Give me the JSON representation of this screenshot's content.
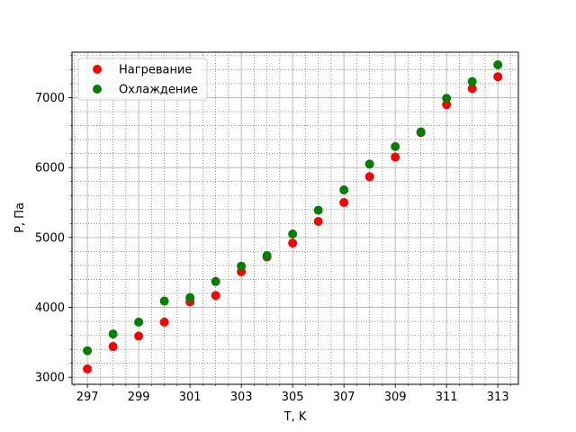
{
  "chart_data": {
    "type": "scatter",
    "title": "",
    "xlabel": "T, K",
    "ylabel": "P, Па",
    "xlim": [
      296.4,
      313.8
    ],
    "ylim": [
      2900,
      7650
    ],
    "x_ticks": [
      297,
      299,
      301,
      303,
      305,
      307,
      309,
      311,
      313
    ],
    "y_ticks": [
      3000,
      4000,
      5000,
      6000,
      7000
    ],
    "x_tick_labels": [
      "297",
      "299",
      "301",
      "303",
      "305",
      "307",
      "309",
      "311",
      "313"
    ],
    "y_tick_labels": [
      "3000",
      "4000",
      "5000",
      "6000",
      "7000"
    ],
    "x_minor_step": 0.5,
    "y_minor_step": 200,
    "grid": true,
    "legend_position": "top-left",
    "series": [
      {
        "name": "Нагревание",
        "color": "#ff0000",
        "x": [
          297,
          298,
          299,
          300,
          301,
          302,
          303,
          304,
          305,
          306,
          307,
          308,
          309,
          310,
          311,
          312,
          313
        ],
        "y": [
          3120,
          3440,
          3590,
          3790,
          4080,
          4170,
          4510,
          4720,
          4920,
          5230,
          5500,
          5870,
          6150,
          6500,
          6900,
          7130,
          7300
        ]
      },
      {
        "name": "Охлаждение",
        "color": "#008000",
        "x": [
          297,
          298,
          299,
          300,
          301,
          302,
          303,
          304,
          305,
          306,
          307,
          308,
          309,
          310,
          311,
          312,
          313
        ],
        "y": [
          3380,
          3620,
          3790,
          4090,
          4140,
          4370,
          4590,
          4740,
          5050,
          5390,
          5680,
          6050,
          6300,
          6510,
          6990,
          7230,
          7470
        ]
      }
    ]
  }
}
